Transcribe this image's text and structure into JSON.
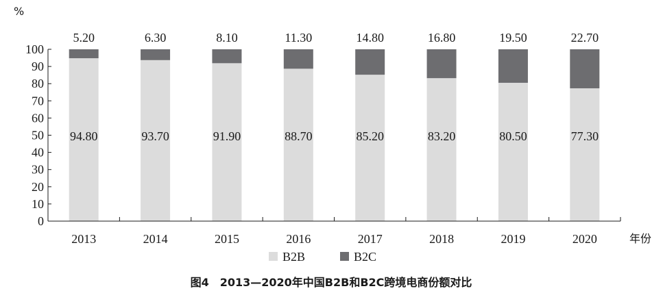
{
  "chart_data": {
    "type": "bar",
    "stacked": true,
    "categories": [
      "2013",
      "2014",
      "2015",
      "2016",
      "2017",
      "2018",
      "2019",
      "2020"
    ],
    "series": [
      {
        "name": "B2B",
        "values": [
          94.8,
          93.7,
          91.9,
          88.7,
          85.2,
          83.2,
          80.5,
          77.3
        ],
        "labels": [
          "94.80",
          "93.70",
          "91.90",
          "88.70",
          "85.20",
          "83.20",
          "80.50",
          "77.30"
        ],
        "color": "#dcdcdc"
      },
      {
        "name": "B2C",
        "values": [
          5.2,
          6.3,
          8.1,
          11.3,
          14.8,
          16.8,
          19.5,
          22.7
        ],
        "labels": [
          "5.20",
          "6.30",
          "8.10",
          "11.30",
          "14.80",
          "16.80",
          "19.50",
          "22.70"
        ],
        "color": "#6d6d70"
      }
    ],
    "ylabel": "%",
    "xlabel": "年份",
    "ylim": [
      0,
      100
    ],
    "yticks": [
      0,
      10,
      20,
      30,
      40,
      50,
      60,
      70,
      80,
      90,
      100
    ],
    "grid": false,
    "legend_position": "bottom-center",
    "caption": "图4　2013—2020年中国B2B和B2C跨境电商份额对比"
  }
}
